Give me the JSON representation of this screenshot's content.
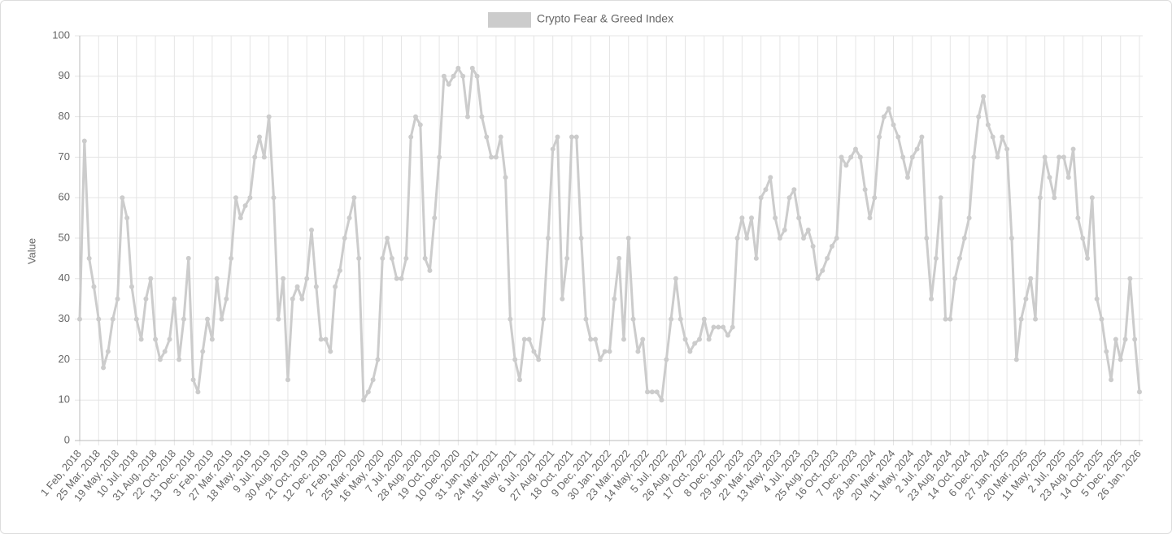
{
  "chart_data": {
    "type": "line",
    "y_label": "Value",
    "legend": "top",
    "grid": true,
    "ylim": [
      0,
      100
    ],
    "yticks": [
      0,
      10,
      20,
      30,
      40,
      50,
      60,
      70,
      80,
      90,
      100
    ],
    "categories": [
      "1 Feb, 2018",
      null,
      null,
      null,
      "25 Mar, 2018",
      null,
      null,
      null,
      "19 May, 2018",
      null,
      null,
      null,
      "10 Jul, 2018",
      null,
      null,
      null,
      "31 Aug, 2018",
      null,
      null,
      null,
      "22 Oct, 2018",
      null,
      null,
      null,
      "13 Dec, 2018",
      null,
      null,
      null,
      "3 Feb, 2019",
      null,
      null,
      null,
      "27 Mar, 2019",
      null,
      null,
      null,
      "18 May, 2019",
      null,
      null,
      null,
      "9 Jul, 2019",
      null,
      null,
      null,
      "30 Aug, 2019",
      null,
      null,
      null,
      "21 Oct, 2019",
      null,
      null,
      null,
      "12 Dec, 2019",
      null,
      null,
      null,
      "2 Feb, 2020",
      null,
      null,
      null,
      "25 Mar, 2020",
      null,
      null,
      null,
      "16 May, 2020",
      null,
      null,
      null,
      "7 Jul, 2020",
      null,
      null,
      null,
      "28 Aug, 2020",
      null,
      null,
      null,
      "19 Oct, 2020",
      null,
      null,
      null,
      "10 Dec, 2020",
      null,
      null,
      null,
      "31 Jan, 2021",
      null,
      null,
      null,
      "24 Mar, 2021",
      null,
      null,
      null,
      "15 May, 2021",
      null,
      null,
      null,
      "6 Jul, 2021",
      null,
      null,
      null,
      "27 Aug, 2021",
      null,
      null,
      null,
      "18 Oct, 2021",
      null,
      null,
      null,
      "9 Dec, 2021",
      null,
      null,
      null,
      "30 Jan, 2022",
      null,
      null,
      null,
      "23 Mar, 2022",
      null,
      null,
      null,
      "14 May, 2022",
      null,
      null,
      null,
      "5 Jul, 2022",
      null,
      null,
      null,
      "26 Aug, 2022",
      null,
      null,
      null,
      "17 Oct, 2022",
      null,
      null,
      null,
      "8 Dec, 2022",
      null,
      null,
      null,
      "29 Jan, 2023",
      null,
      null,
      null,
      "22 Mar, 2023",
      null,
      null,
      null,
      "13 May, 2023",
      null,
      null,
      null,
      "4 Jul, 2023",
      null,
      null,
      null,
      "25 Aug, 2023",
      null,
      null,
      null,
      "16 Oct, 2023",
      null,
      null,
      null,
      "7 Dec, 2023",
      null,
      null,
      null,
      "28 Jan, 2024",
      null,
      null,
      null,
      "20 Mar, 2024",
      null,
      null,
      null,
      "11 May, 2024",
      null,
      null,
      null,
      "2 Jul, 2024",
      null,
      null,
      null,
      "23 Aug, 2024",
      null,
      null,
      null,
      "14 Oct, 2024",
      null,
      null,
      null,
      "6 Dec, 2024",
      null,
      null,
      null,
      "27 Jan, 2025",
      null,
      null,
      null,
      "20 Mar, 2025",
      null,
      null,
      null,
      "11 May, 2025",
      null,
      null,
      null,
      "2 Jul, 2025",
      null,
      null,
      null,
      "23 Aug, 2025",
      null,
      null,
      null,
      "14 Oct, 2025",
      null,
      null,
      null,
      "5 Dec, 2025",
      null,
      null,
      null,
      "26 Jan, 2026"
    ],
    "series": [
      {
        "name": "Crypto Fear & Greed Index",
        "color": "#cccccc",
        "values": [
          30,
          74,
          45,
          38,
          30,
          18,
          22,
          30,
          35,
          60,
          55,
          38,
          30,
          25,
          35,
          40,
          25,
          20,
          22,
          25,
          35,
          20,
          30,
          45,
          15,
          12,
          22,
          30,
          25,
          40,
          30,
          35,
          45,
          60,
          55,
          58,
          60,
          70,
          75,
          70,
          80,
          60,
          30,
          40,
          15,
          35,
          38,
          35,
          40,
          52,
          38,
          25,
          25,
          22,
          38,
          42,
          50,
          55,
          60,
          45,
          10,
          12,
          15,
          20,
          45,
          50,
          45,
          40,
          40,
          45,
          75,
          80,
          78,
          45,
          42,
          55,
          70,
          90,
          88,
          90,
          92,
          90,
          80,
          92,
          90,
          80,
          75,
          70,
          70,
          75,
          65,
          30,
          20,
          15,
          25,
          25,
          22,
          20,
          30,
          50,
          72,
          75,
          35,
          45,
          75,
          75,
          50,
          30,
          25,
          25,
          20,
          22,
          22,
          35,
          45,
          25,
          50,
          30,
          22,
          25,
          12,
          12,
          12,
          10,
          20,
          30,
          40,
          30,
          25,
          22,
          24,
          25,
          30,
          25,
          28,
          28,
          28,
          26,
          28,
          50,
          55,
          50,
          55,
          45,
          60,
          62,
          65,
          55,
          50,
          52,
          60,
          62,
          55,
          50,
          52,
          48,
          40,
          42,
          45,
          48,
          50,
          70,
          68,
          70,
          72,
          70,
          62,
          55,
          60,
          75,
          80,
          82,
          78,
          75,
          70,
          65,
          70,
          72,
          75,
          50,
          35,
          45,
          60,
          30,
          30,
          40,
          45,
          50,
          55,
          70,
          80,
          85,
          78,
          75,
          70,
          75,
          72,
          50,
          20,
          30,
          35,
          40,
          30,
          60,
          70,
          65,
          60,
          70,
          70,
          65,
          72,
          55,
          50,
          45,
          60,
          35,
          30,
          22,
          15,
          25,
          20,
          25,
          40,
          25,
          12
        ]
      }
    ]
  }
}
